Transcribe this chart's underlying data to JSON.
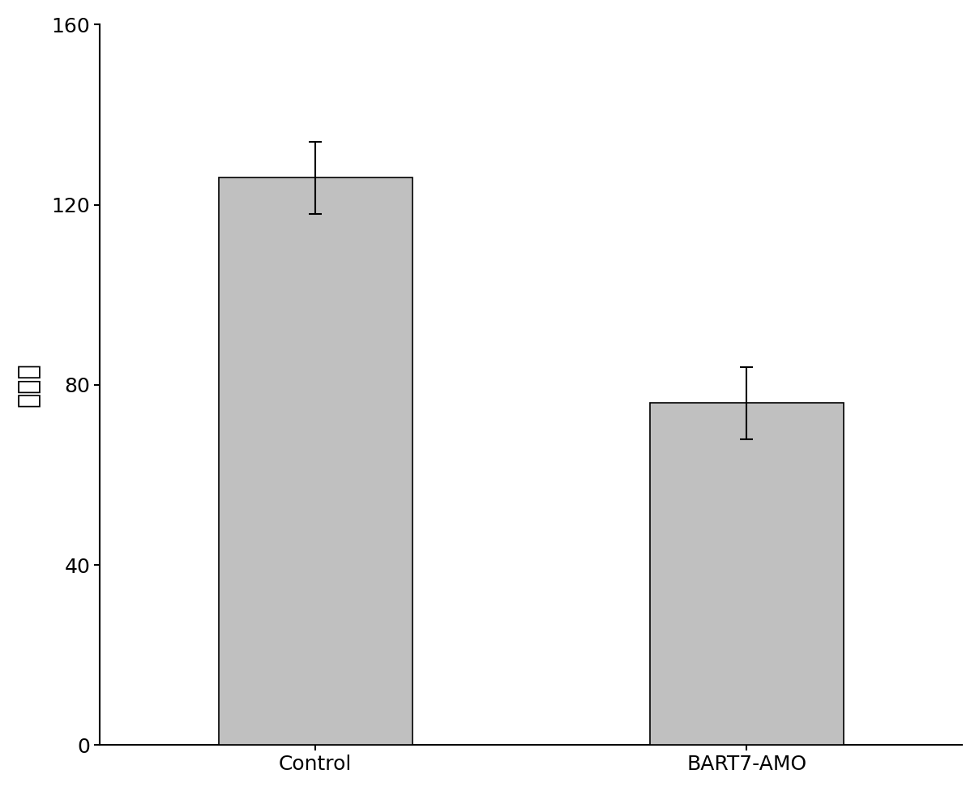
{
  "categories": [
    "Control",
    "BART7-AMO"
  ],
  "values": [
    126,
    76
  ],
  "errors": [
    8,
    8
  ],
  "bar_color": "#c0c0c0",
  "bar_edgecolor": "#000000",
  "ylabel": "细胞数",
  "ylim": [
    0,
    160
  ],
  "yticks": [
    0,
    40,
    80,
    120,
    160
  ],
  "bar_width": 0.45,
  "background_color": "#ffffff",
  "tick_fontsize": 18,
  "label_fontsize": 22,
  "error_capsize": 6,
  "error_linewidth": 1.5
}
